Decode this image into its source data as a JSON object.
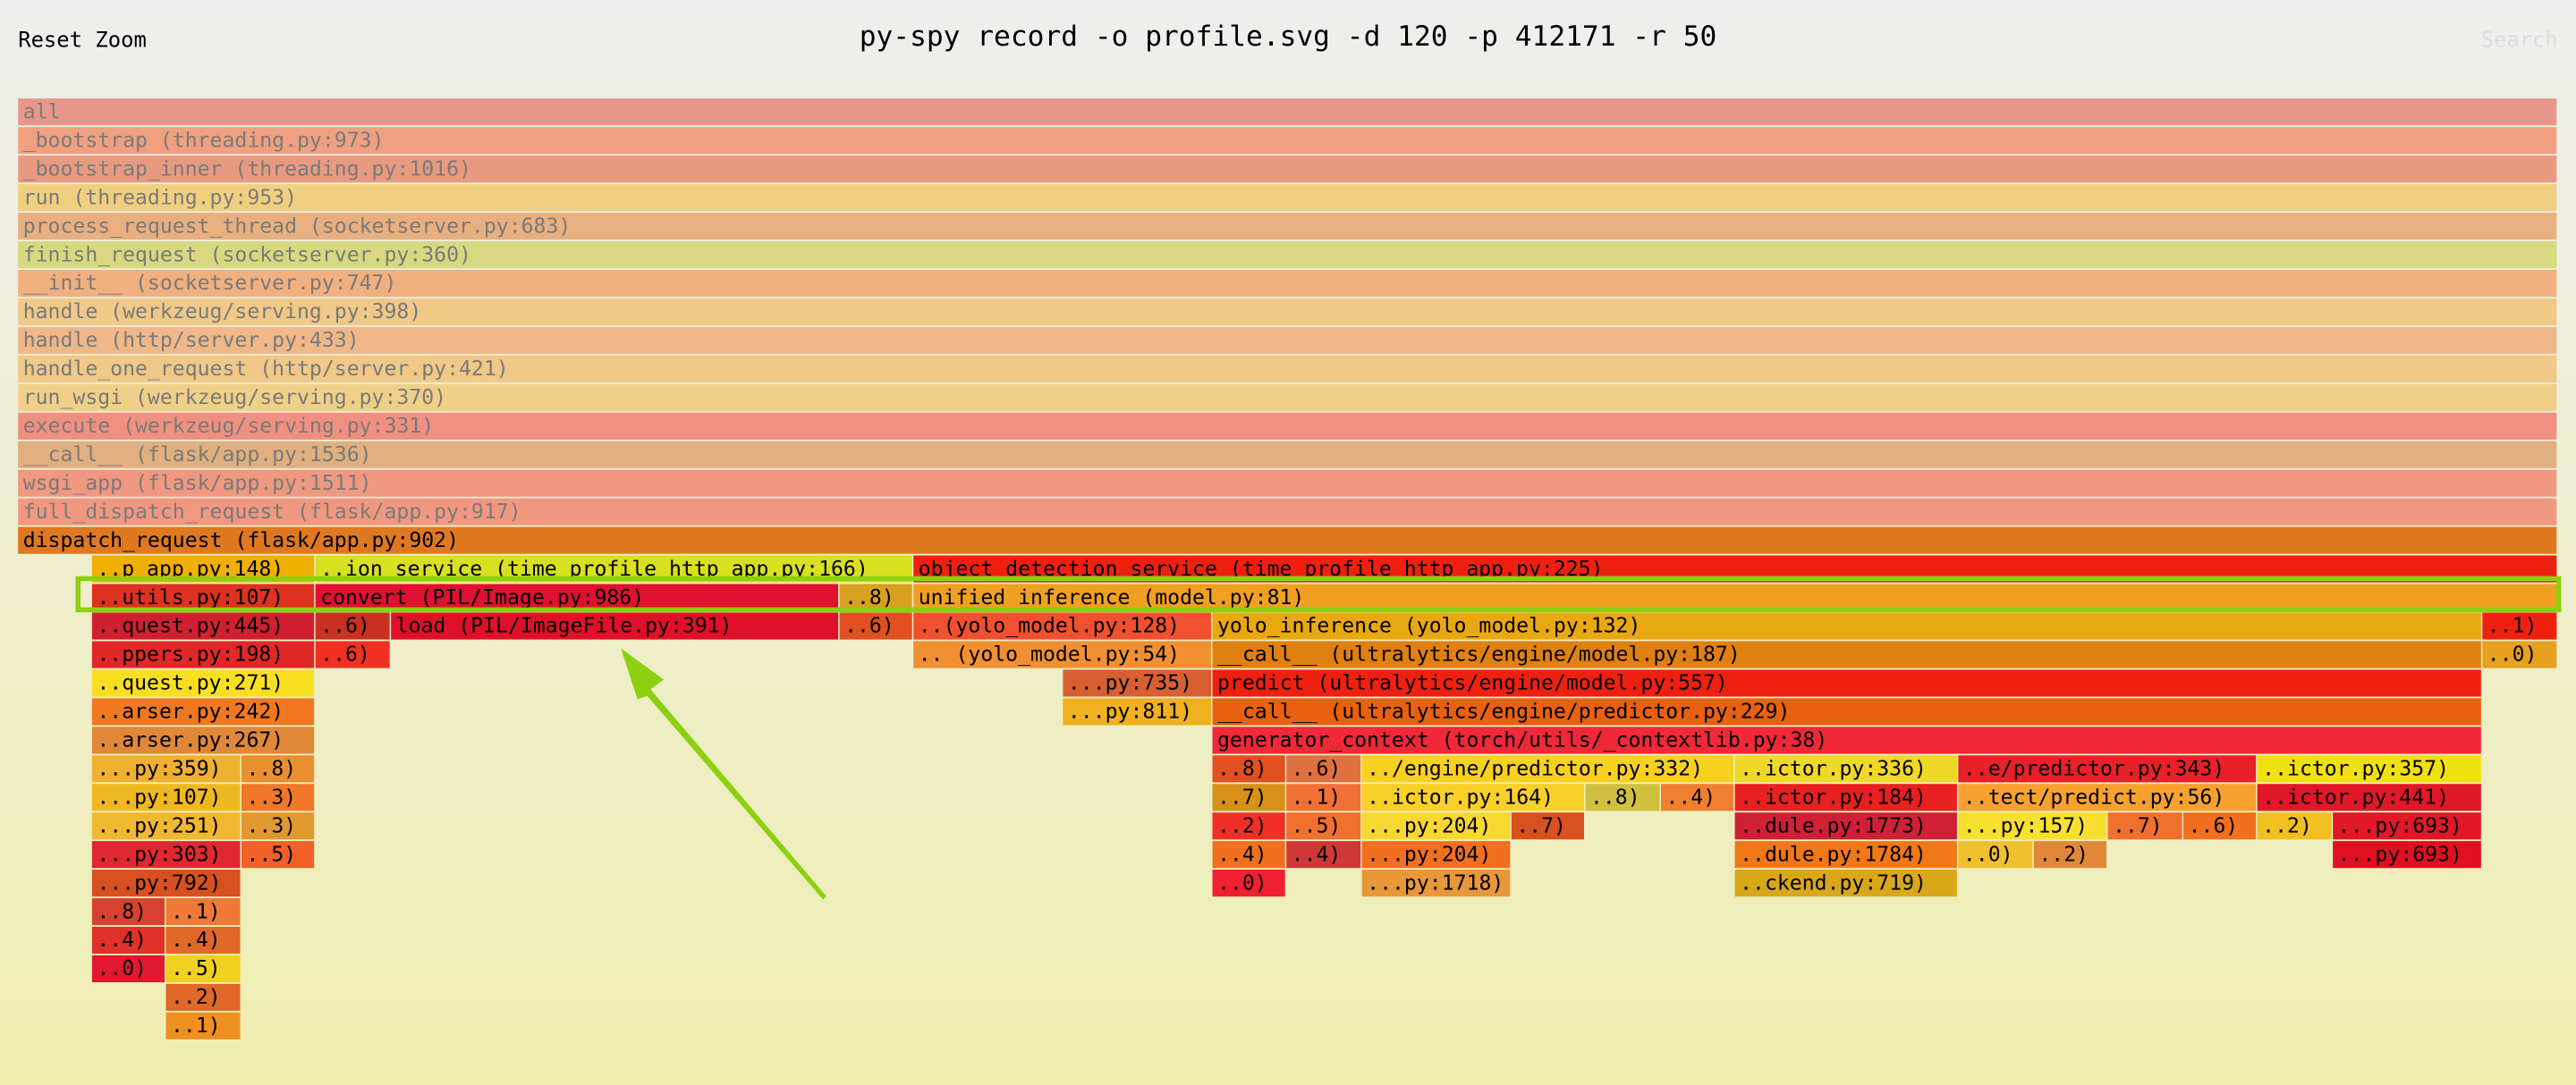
{
  "header": {
    "reset_zoom": "Reset Zoom",
    "title": "py-spy record -o profile.svg -d 120 -p 412171 -r 50",
    "search": "Search"
  },
  "frames": [
    "all",
    "_bootstrap (threading.py:973)",
    "_bootstrap_inner (threading.py:1016)",
    "run (threading.py:953)",
    "process_request_thread (socketserver.py:683)",
    "finish_request (socketserver.py:360)",
    "__init__ (socketserver.py:747)",
    "handle (werkzeug/serving.py:398)",
    "handle (http/server.py:433)",
    "handle_one_request (http/server.py:421)",
    "run_wsgi (werkzeug/serving.py:370)",
    "execute (werkzeug/serving.py:331)",
    "__call__ (flask/app.py:1536)",
    "wsgi_app (flask/app.py:1511)",
    "full_dispatch_request (flask/app.py:917)",
    "dispatch_request (flask/app.py:902)",
    "..p app.py:148)",
    "..ion service (time profile http app.py:166)",
    "object detection service (time profile http app.py:225)",
    "..utils.py:107)",
    "convert (PIL/Image.py:986)",
    "..8)",
    "unified_inference (model.py:81)",
    "..quest.py:445)",
    "..6)",
    "load (PIL/ImageFile.py:391)",
    "..6)",
    "..(yolo_model.py:128)",
    "yolo_inference (yolo_model.py:132)",
    "..1)",
    "..ppers.py:198)",
    "..6)",
    ".. (yolo_model.py:54)",
    "__call__ (ultralytics/engine/model.py:187)",
    "..0)",
    "..quest.py:271)",
    "...py:735)",
    "predict (ultralytics/engine/model.py:557)",
    "..arser.py:242)",
    "...py:811)",
    "__call__ (ultralytics/engine/predictor.py:229)",
    "..arser.py:267)",
    "generator_context (torch/utils/_contextlib.py:38)",
    "...py:359)",
    "..8)",
    "..8)",
    "..6)",
    "../engine/predictor.py:332)",
    "..ictor.py:336)",
    "..e/predictor.py:343)",
    "..ictor.py:357)",
    "...py:107)",
    "..3)",
    "..7)",
    "..1)",
    "..ictor.py:164)",
    "..8)",
    "..4)",
    "..ictor.py:184)",
    "..tect/predict.py:56)",
    "..ictor.py:441)",
    "...py:251)",
    "..3)",
    "..2)",
    "..5)",
    "...py:204)",
    "..7)",
    "..dule.py:1773)",
    "...py:157)",
    "..7)",
    "..6)",
    "..2)",
    "...py:693)",
    "...py:303)",
    "..5)",
    "..4)",
    "..4)",
    "...py:204)",
    "..dule.py:1784)",
    "..0)",
    "..2)",
    "...py:693)",
    "...py:792)",
    "..0)",
    "...py:1718)",
    "..ckend.py:719)",
    "..8)",
    "..1)",
    "..4)",
    "..4)",
    "..0)",
    "..5)",
    "..2)",
    "..1)"
  ]
}
